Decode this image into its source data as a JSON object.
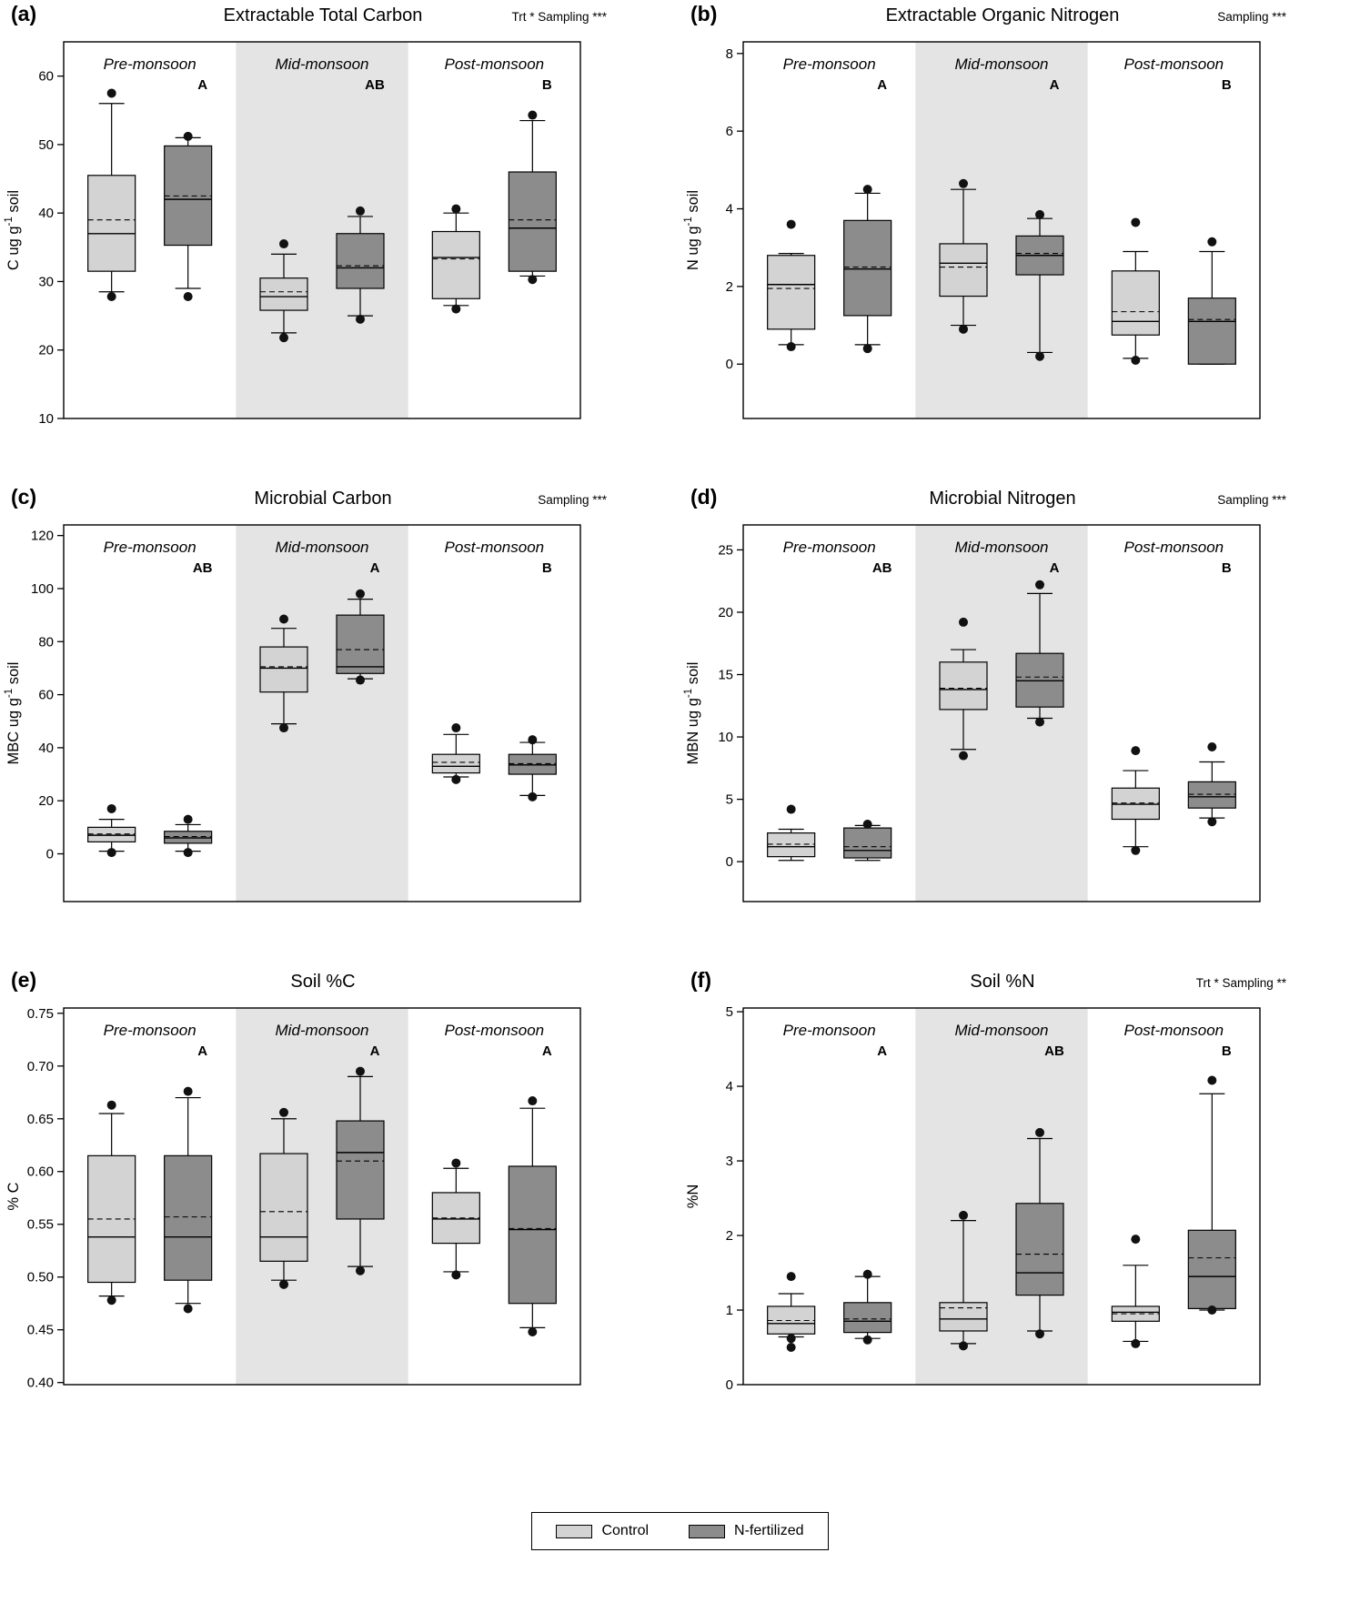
{
  "figure": {
    "background": "#ffffff",
    "colors": {
      "control_fill": "#d3d3d3",
      "fertilized_fill": "#8c8c8c",
      "mid_shade": "#e4e4e4",
      "stroke": "#000000",
      "point": "#111111"
    },
    "legend": {
      "items": [
        {
          "label": "Control",
          "color": "#d3d3d3"
        },
        {
          "label": "N-fertilized",
          "color": "#8c8c8c"
        }
      ]
    }
  },
  "chart_data": [
    {
      "id": "a",
      "type": "boxplot",
      "panel_label": "(a)",
      "title": "Extractable Total Carbon",
      "stats": "Trt * Sampling ***",
      "ylabel": "C ug g⁻¹ soil",
      "ylim": [
        10,
        65
      ],
      "yticks": [
        10,
        20,
        30,
        40,
        50,
        60
      ],
      "ytick_labels": [
        "10",
        "20",
        "30",
        "40",
        "50",
        "60"
      ],
      "groups": [
        {
          "season": "Pre-monsoon",
          "letter": "A",
          "boxes": [
            {
              "series": "Control",
              "low": 28.5,
              "q1": 31.5,
              "median": 37,
              "mean": 39,
              "q3": 45.5,
              "high": 56,
              "points": [
                57.5,
                27.8
              ]
            },
            {
              "series": "N-fertilized",
              "low": 29,
              "q1": 35.3,
              "median": 42,
              "mean": 42.5,
              "q3": 49.8,
              "high": 51,
              "points": [
                51.2,
                27.8
              ]
            }
          ]
        },
        {
          "season": "Mid-monsoon",
          "letter": "AB",
          "boxes": [
            {
              "series": "Control",
              "low": 22.5,
              "q1": 25.8,
              "median": 27.8,
              "mean": 28.5,
              "q3": 30.5,
              "high": 34,
              "points": [
                35.5,
                21.8
              ]
            },
            {
              "series": "N-fertilized",
              "low": 25,
              "q1": 29,
              "median": 32,
              "mean": 32.3,
              "q3": 37,
              "high": 39.5,
              "points": [
                40.3,
                24.5
              ]
            }
          ]
        },
        {
          "season": "Post-monsoon",
          "letter": "B",
          "boxes": [
            {
              "series": "Control",
              "low": 26.5,
              "q1": 27.5,
              "median": 33.5,
              "mean": 33.3,
              "q3": 37.3,
              "high": 40,
              "points": [
                40.6,
                26
              ]
            },
            {
              "series": "N-fertilized",
              "low": 30.8,
              "q1": 31.5,
              "median": 37.8,
              "mean": 39,
              "q3": 46,
              "high": 53.5,
              "points": [
                54.3,
                30.3
              ]
            }
          ]
        }
      ]
    },
    {
      "id": "b",
      "type": "boxplot",
      "panel_label": "(b)",
      "title": "Extractable Organic Nitrogen",
      "stats": "Sampling ***",
      "ylabel": "N ug g⁻¹ soil",
      "ylim": [
        -1.4,
        8.3
      ],
      "yticks": [
        0,
        2,
        4,
        6,
        8
      ],
      "ytick_labels": [
        "0",
        "2",
        "4",
        "6",
        "8"
      ],
      "groups": [
        {
          "season": "Pre-monsoon",
          "letter": "A",
          "boxes": [
            {
              "series": "Control",
              "low": 0.5,
              "q1": 0.9,
              "median": 2.05,
              "mean": 1.95,
              "q3": 2.8,
              "high": 2.85,
              "points": [
                3.6,
                0.45
              ]
            },
            {
              "series": "N-fertilized",
              "low": 0.5,
              "q1": 1.25,
              "median": 2.45,
              "mean": 2.5,
              "q3": 3.7,
              "high": 4.4,
              "points": [
                4.5,
                0.4
              ]
            }
          ]
        },
        {
          "season": "Mid-monsoon",
          "letter": "A",
          "boxes": [
            {
              "series": "Control",
              "low": 1.0,
              "q1": 1.75,
              "median": 2.6,
              "mean": 2.5,
              "q3": 3.1,
              "high": 4.5,
              "points": [
                4.65,
                0.9
              ]
            },
            {
              "series": "N-fertilized",
              "low": 0.3,
              "q1": 2.3,
              "median": 2.8,
              "mean": 2.85,
              "q3": 3.3,
              "high": 3.75,
              "points": [
                3.85,
                0.2
              ]
            }
          ]
        },
        {
          "season": "Post-monsoon",
          "letter": "B",
          "boxes": [
            {
              "series": "Control",
              "low": 0.15,
              "q1": 0.75,
              "median": 1.1,
              "mean": 1.35,
              "q3": 2.4,
              "high": 2.9,
              "points": [
                3.65,
                0.1
              ]
            },
            {
              "series": "N-fertilized",
              "low": 0.0,
              "q1": 0.0,
              "median": 1.1,
              "mean": 1.15,
              "q3": 1.7,
              "high": 2.9,
              "points": [
                3.15
              ]
            }
          ]
        }
      ]
    },
    {
      "id": "c",
      "type": "boxplot",
      "panel_label": "(c)",
      "title": "Microbial Carbon",
      "stats": "Sampling ***",
      "ylabel": "MBC ug g⁻¹ soil",
      "ylim": [
        -18,
        124
      ],
      "yticks": [
        0,
        20,
        40,
        60,
        80,
        100,
        120
      ],
      "ytick_labels": [
        "0",
        "20",
        "40",
        "60",
        "80",
        "100",
        "120"
      ],
      "groups": [
        {
          "season": "Pre-monsoon",
          "letter": "AB",
          "boxes": [
            {
              "series": "Control",
              "low": 1,
              "q1": 4.5,
              "median": 7,
              "mean": 7.5,
              "q3": 10,
              "high": 13,
              "points": [
                17,
                0.5
              ]
            },
            {
              "series": "N-fertilized",
              "low": 1,
              "q1": 4,
              "median": 6,
              "mean": 6.5,
              "q3": 8.5,
              "high": 11,
              "points": [
                13,
                0.5
              ]
            }
          ]
        },
        {
          "season": "Mid-monsoon",
          "letter": "A",
          "boxes": [
            {
              "series": "Control",
              "low": 49,
              "q1": 61,
              "median": 70,
              "mean": 70.5,
              "q3": 78,
              "high": 85,
              "points": [
                88.5,
                47.5
              ]
            },
            {
              "series": "N-fertilized",
              "low": 66,
              "q1": 68,
              "median": 70.5,
              "mean": 77,
              "q3": 90,
              "high": 96,
              "points": [
                98,
                65.5
              ]
            }
          ]
        },
        {
          "season": "Post-monsoon",
          "letter": "B",
          "boxes": [
            {
              "series": "Control",
              "low": 29,
              "q1": 30.5,
              "median": 33,
              "mean": 34.5,
              "q3": 37.5,
              "high": 45,
              "points": [
                47.5,
                28
              ]
            },
            {
              "series": "N-fertilized",
              "low": 22,
              "q1": 30,
              "median": 33.5,
              "mean": 34,
              "q3": 37.5,
              "high": 42,
              "points": [
                43,
                21.5
              ]
            }
          ]
        }
      ]
    },
    {
      "id": "d",
      "type": "boxplot",
      "panel_label": "(d)",
      "title": "Microbial Nitrogen",
      "stats": "Sampling ***",
      "ylabel": "MBN ug g⁻¹ soil",
      "ylim": [
        -3.2,
        27
      ],
      "yticks": [
        0,
        5,
        10,
        15,
        20,
        25
      ],
      "ytick_labels": [
        "0",
        "5",
        "10",
        "15",
        "20",
        "25"
      ],
      "groups": [
        {
          "season": "Pre-monsoon",
          "letter": "AB",
          "boxes": [
            {
              "series": "Control",
              "low": 0.1,
              "q1": 0.4,
              "median": 1.2,
              "mean": 1.4,
              "q3": 2.3,
              "high": 2.6,
              "points": [
                4.2
              ]
            },
            {
              "series": "N-fertilized",
              "low": 0.1,
              "q1": 0.3,
              "median": 0.9,
              "mean": 1.2,
              "q3": 2.7,
              "high": 2.9,
              "points": [
                3.0
              ]
            }
          ]
        },
        {
          "season": "Mid-monsoon",
          "letter": "A",
          "boxes": [
            {
              "series": "Control",
              "low": 9,
              "q1": 12.2,
              "median": 13.8,
              "mean": 13.9,
              "q3": 16,
              "high": 17,
              "points": [
                19.2,
                8.5
              ]
            },
            {
              "series": "N-fertilized",
              "low": 11.5,
              "q1": 12.4,
              "median": 14.5,
              "mean": 14.8,
              "q3": 16.7,
              "high": 21.5,
              "points": [
                22.2,
                11.2
              ]
            }
          ]
        },
        {
          "season": "Post-monsoon",
          "letter": "B",
          "boxes": [
            {
              "series": "Control",
              "low": 1.2,
              "q1": 3.4,
              "median": 4.6,
              "mean": 4.7,
              "q3": 5.9,
              "high": 7.3,
              "points": [
                8.9,
                0.9
              ]
            },
            {
              "series": "N-fertilized",
              "low": 3.5,
              "q1": 4.3,
              "median": 5.2,
              "mean": 5.4,
              "q3": 6.4,
              "high": 8.0,
              "points": [
                9.2,
                3.2
              ]
            }
          ]
        }
      ]
    },
    {
      "id": "e",
      "type": "boxplot",
      "panel_label": "(e)",
      "title": "Soil %C",
      "stats": "",
      "ylabel": "% C",
      "ylim": [
        0.398,
        0.755
      ],
      "yticks": [
        0.4,
        0.45,
        0.5,
        0.55,
        0.6,
        0.65,
        0.7,
        0.75
      ],
      "ytick_labels": [
        "0.40",
        "0.45",
        "0.50",
        "0.55",
        "0.60",
        "0.65",
        "0.70",
        "0.75"
      ],
      "groups": [
        {
          "season": "Pre-monsoon",
          "letter": "A",
          "boxes": [
            {
              "series": "Control",
              "low": 0.482,
              "q1": 0.495,
              "median": 0.538,
              "mean": 0.555,
              "q3": 0.615,
              "high": 0.655,
              "points": [
                0.663,
                0.478
              ]
            },
            {
              "series": "N-fertilized",
              "low": 0.475,
              "q1": 0.497,
              "median": 0.538,
              "mean": 0.557,
              "q3": 0.615,
              "high": 0.67,
              "points": [
                0.676,
                0.47
              ]
            }
          ]
        },
        {
          "season": "Mid-monsoon",
          "letter": "A",
          "boxes": [
            {
              "series": "Control",
              "low": 0.497,
              "q1": 0.515,
              "median": 0.538,
              "mean": 0.562,
              "q3": 0.617,
              "high": 0.65,
              "points": [
                0.656,
                0.493
              ]
            },
            {
              "series": "N-fertilized",
              "low": 0.51,
              "q1": 0.555,
              "median": 0.618,
              "mean": 0.61,
              "q3": 0.648,
              "high": 0.69,
              "points": [
                0.695,
                0.506
              ]
            }
          ]
        },
        {
          "season": "Post-monsoon",
          "letter": "A",
          "boxes": [
            {
              "series": "Control",
              "low": 0.505,
              "q1": 0.532,
              "median": 0.555,
              "mean": 0.556,
              "q3": 0.58,
              "high": 0.603,
              "points": [
                0.608,
                0.502
              ]
            },
            {
              "series": "N-fertilized",
              "low": 0.452,
              "q1": 0.475,
              "median": 0.545,
              "mean": 0.546,
              "q3": 0.605,
              "high": 0.66,
              "points": [
                0.667,
                0.448
              ]
            }
          ]
        }
      ]
    },
    {
      "id": "f",
      "type": "boxplot",
      "panel_label": "(f)",
      "title": "Soil %N",
      "stats": "Trt * Sampling **",
      "ylabel": "%N",
      "ylim": [
        0,
        5.05
      ],
      "yticks": [
        0,
        1,
        2,
        3,
        4,
        5
      ],
      "ytick_labels": [
        "0",
        "1",
        "2",
        "3",
        "4",
        "5"
      ],
      "groups": [
        {
          "season": "Pre-monsoon",
          "letter": "A",
          "boxes": [
            {
              "series": "Control",
              "low": 0.64,
              "q1": 0.68,
              "median": 0.82,
              "mean": 0.86,
              "q3": 1.05,
              "high": 1.22,
              "points": [
                1.45,
                0.62,
                0.5
              ]
            },
            {
              "series": "N-fertilized",
              "low": 0.62,
              "q1": 0.7,
              "median": 0.85,
              "mean": 0.88,
              "q3": 1.1,
              "high": 1.45,
              "points": [
                1.48,
                0.6
              ]
            }
          ]
        },
        {
          "season": "Mid-monsoon",
          "letter": "AB",
          "boxes": [
            {
              "series": "Control",
              "low": 0.55,
              "q1": 0.72,
              "median": 0.88,
              "mean": 1.03,
              "q3": 1.1,
              "high": 2.2,
              "points": [
                2.27,
                0.52
              ]
            },
            {
              "series": "N-fertilized",
              "low": 0.72,
              "q1": 1.2,
              "median": 1.5,
              "mean": 1.75,
              "q3": 2.43,
              "high": 3.3,
              "points": [
                3.38,
                0.68
              ]
            }
          ]
        },
        {
          "season": "Post-monsoon",
          "letter": "B",
          "boxes": [
            {
              "series": "Control",
              "low": 0.58,
              "q1": 0.85,
              "median": 0.97,
              "mean": 0.95,
              "q3": 1.05,
              "high": 1.6,
              "points": [
                1.95,
                0.55
              ]
            },
            {
              "series": "N-fertilized",
              "low": 1.0,
              "q1": 1.02,
              "median": 1.45,
              "mean": 1.7,
              "q3": 2.07,
              "high": 3.9,
              "points": [
                4.08,
                1.0
              ]
            }
          ]
        }
      ]
    }
  ]
}
